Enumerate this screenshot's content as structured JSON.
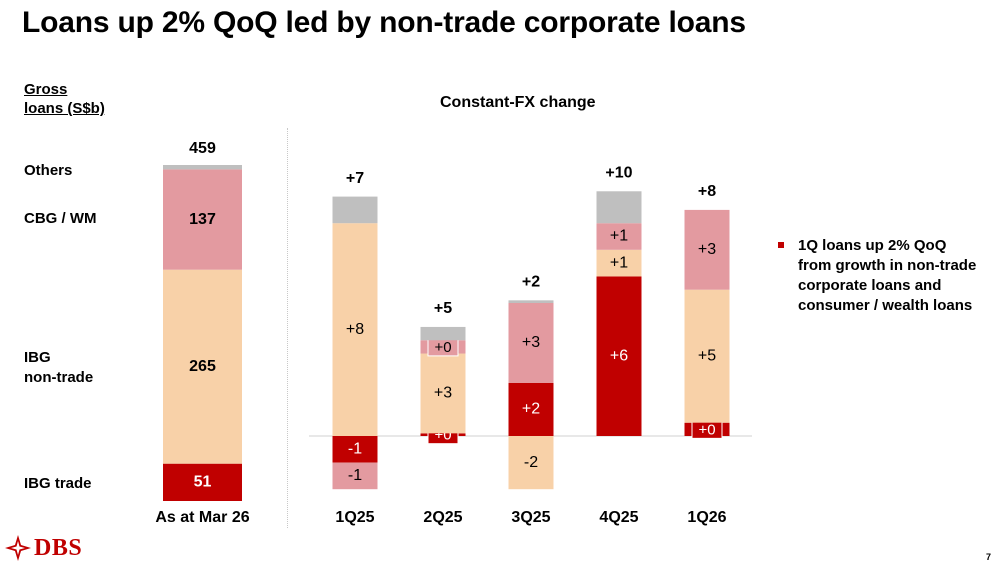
{
  "title": "Loans up 2% QoQ led by non-trade corporate loans",
  "unit_label": "Gross\nloans (S$b)",
  "cfx_label": "Constant-FX change",
  "segment_labels": [
    {
      "key": "others",
      "text": "Others"
    },
    {
      "key": "cbg",
      "text": "CBG / WM"
    },
    {
      "key": "ibg_nontrade",
      "text": "IBG\nnon-trade"
    },
    {
      "key": "ibg_trade",
      "text": "IBG trade"
    }
  ],
  "bullet": "1Q loans up 2% QoQ from growth in non-trade corporate loans and consumer / wealth loans",
  "logo_text": "DBS",
  "page_number": "7",
  "colors": {
    "others": "#bfbfbf",
    "cbg": "#e39aa0",
    "ibg_nontrade": "#f8d1a8",
    "ibg_trade": "#c00000",
    "accent": "#c00000"
  },
  "chart_data": [
    {
      "type": "bar",
      "stacked": true,
      "categories": [
        "As at Mar 26"
      ],
      "total_label": "459",
      "series": [
        {
          "name": "IBG trade",
          "values": [
            51
          ],
          "label": "51"
        },
        {
          "name": "IBG non-trade",
          "values": [
            265
          ],
          "label": "265"
        },
        {
          "name": "CBG / WM",
          "values": [
            137
          ],
          "label": "137"
        },
        {
          "name": "Others",
          "values": [
            6
          ],
          "label": ""
        }
      ]
    },
    {
      "type": "bar",
      "stacked": true,
      "categories": [
        "1Q25",
        "2Q25",
        "3Q25",
        "4Q25",
        "1Q26"
      ],
      "totals": [
        "+7",
        "+5",
        "+2",
        "+10",
        "+8"
      ],
      "series": [
        {
          "name": "IBG trade",
          "values": [
            -1,
            0.1,
            2,
            6,
            0.5
          ],
          "labels": [
            "-1",
            "+0",
            "+2",
            "+6",
            "+0"
          ]
        },
        {
          "name": "IBG non-trade",
          "values": [
            8,
            3,
            -2,
            1,
            5
          ],
          "labels": [
            "+8",
            "+3",
            "-2",
            "+1",
            "+5"
          ]
        },
        {
          "name": "CBG / WM",
          "values": [
            -1,
            0.5,
            3,
            1,
            3
          ],
          "labels": [
            "-1",
            "+0",
            "+3",
            "+1",
            "+3"
          ]
        },
        {
          "name": "Others",
          "values": [
            1,
            0.5,
            0.1,
            1.2,
            0
          ],
          "labels": [
            "",
            "",
            "",
            "",
            ""
          ]
        }
      ]
    }
  ]
}
